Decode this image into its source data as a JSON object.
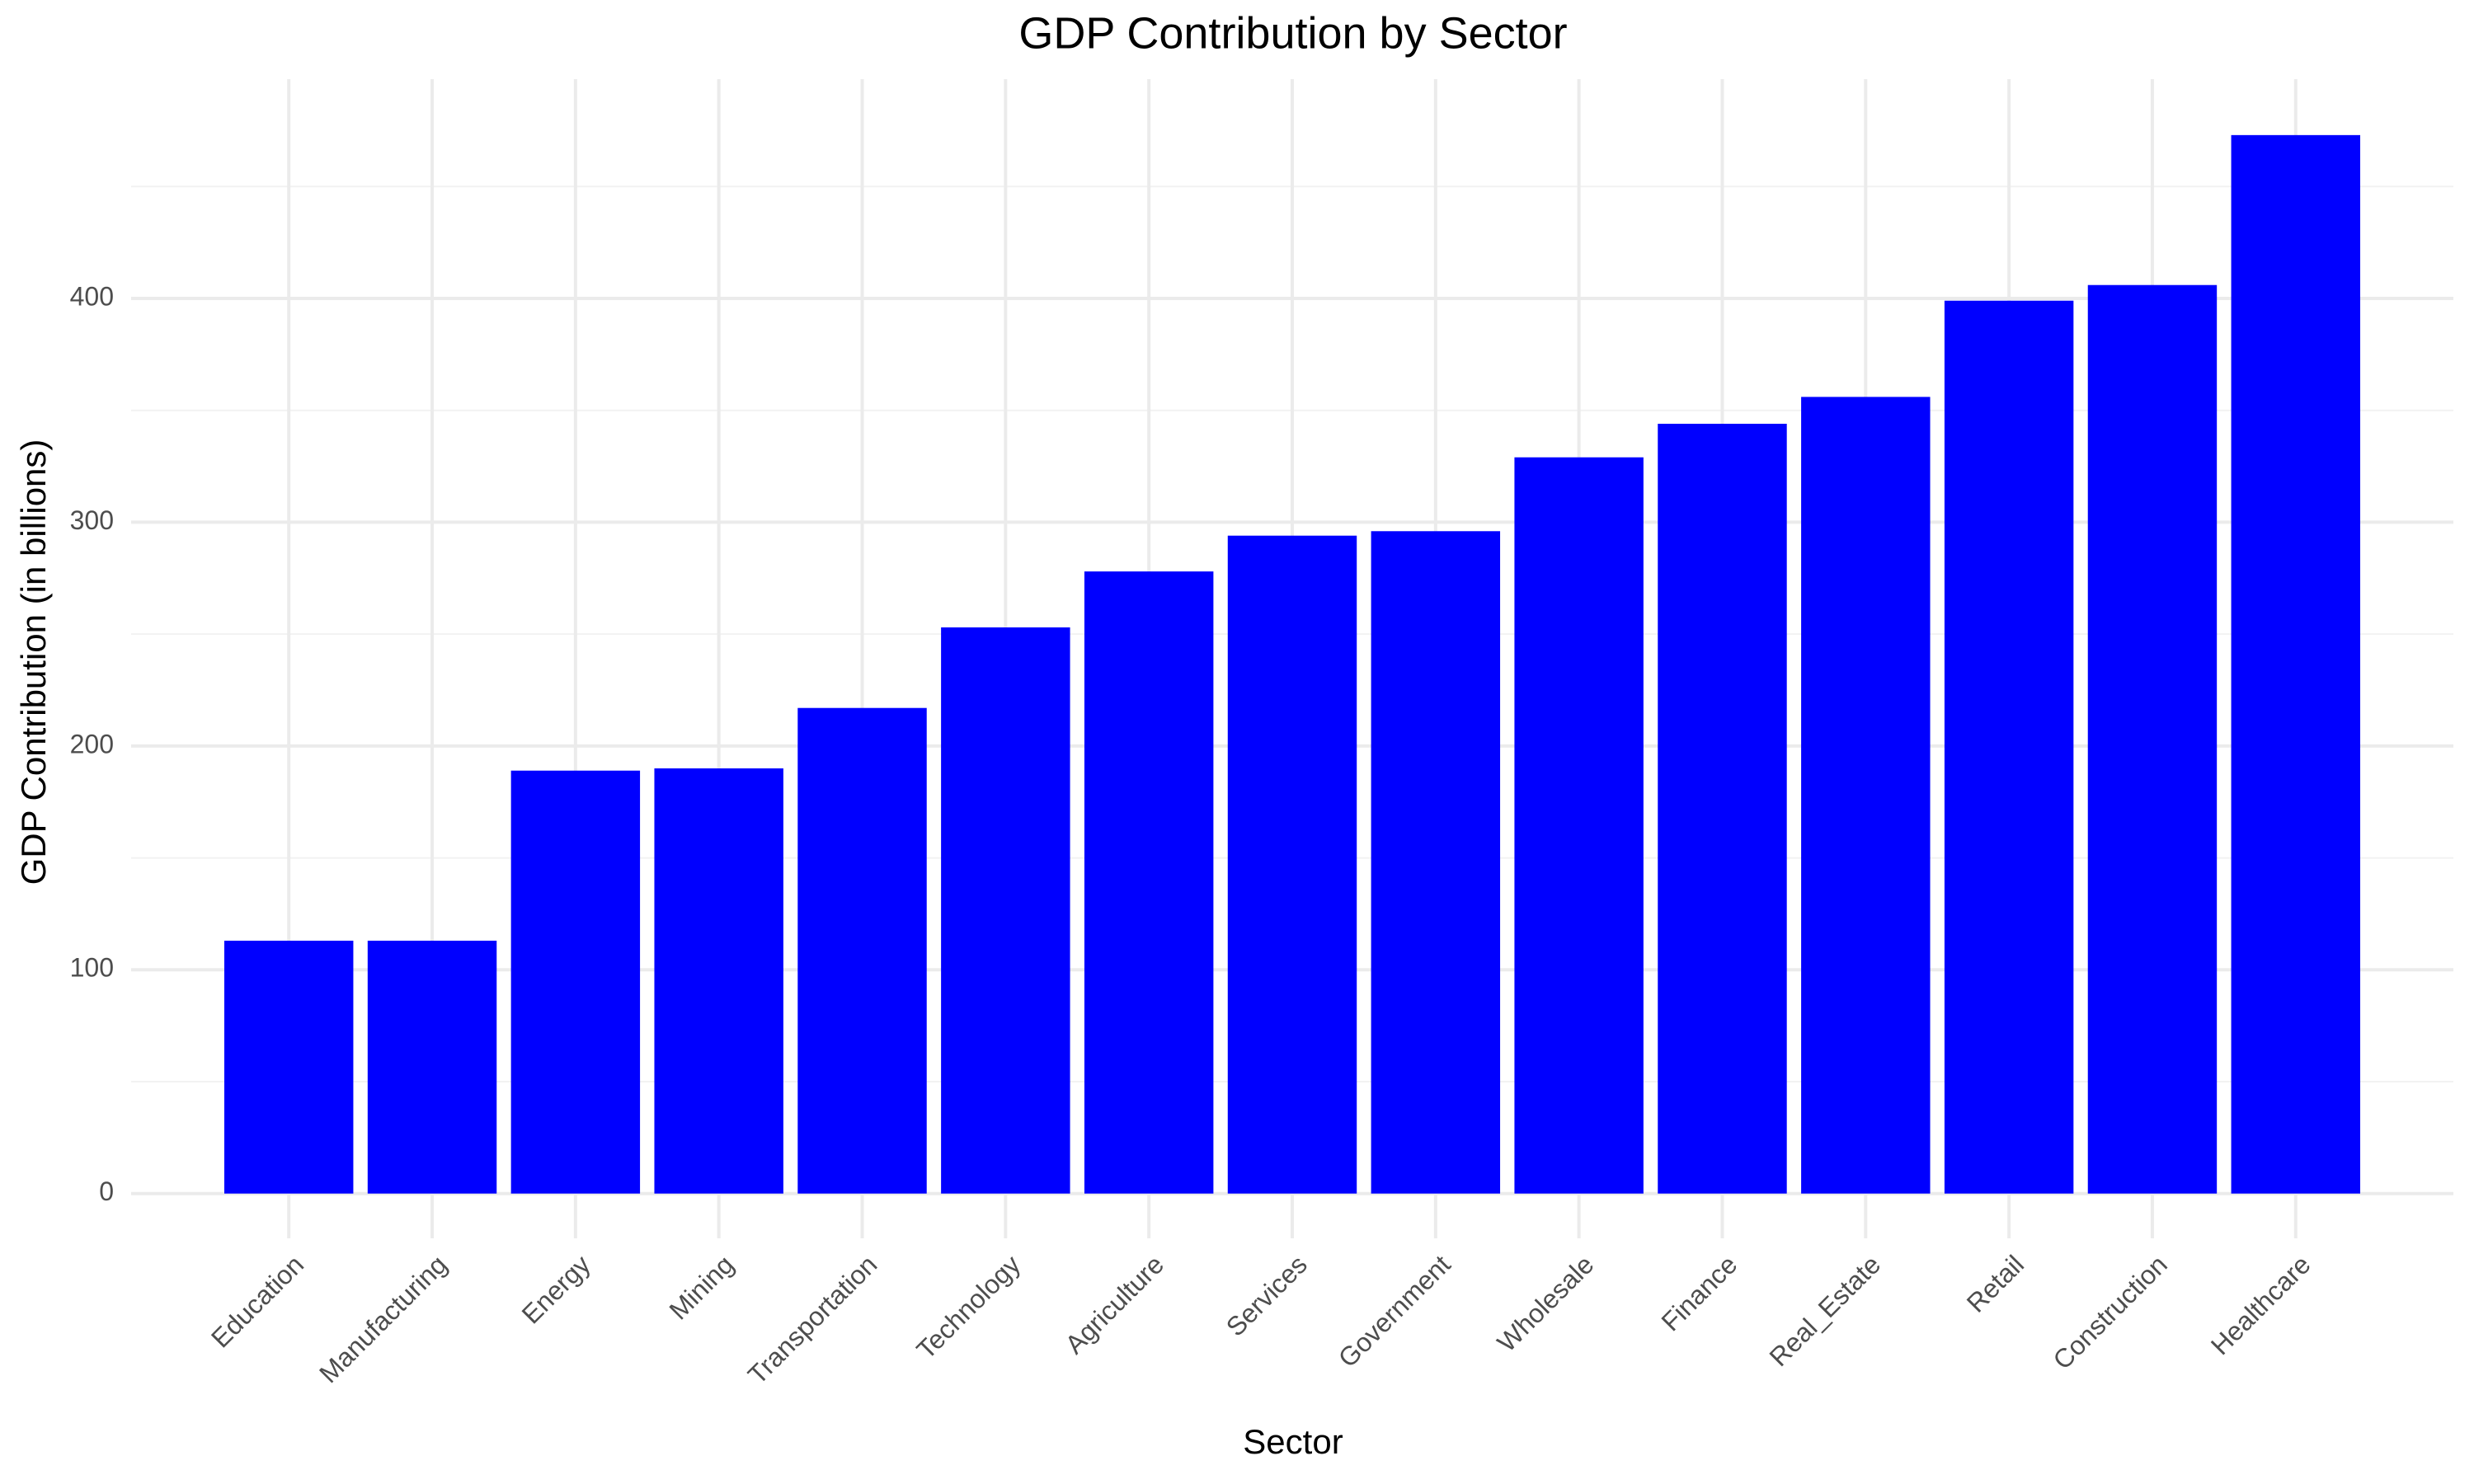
{
  "chart_data": {
    "type": "bar",
    "title": "GDP Contribution by Sector",
    "x_label": "Sector",
    "y_label": "GDP Contribution (in billions)",
    "categories": [
      "Education",
      "Manufacturing",
      "Energy",
      "Mining",
      "Transportation",
      "Technology",
      "Agriculture",
      "Services",
      "Government",
      "Wholesale",
      "Finance",
      "Real_Estate",
      "Retail",
      "Construction",
      "Healthcare"
    ],
    "values": [
      113,
      113,
      189,
      190,
      217,
      253,
      278,
      294,
      296,
      329,
      344,
      356,
      399,
      406,
      473
    ],
    "color": "#0000ff",
    "ylim": [
      -20,
      498
    ],
    "yticks": [
      0,
      100,
      200,
      300,
      400
    ],
    "yticks_minor": [
      50,
      150,
      250,
      350,
      450
    ],
    "grid": true
  }
}
